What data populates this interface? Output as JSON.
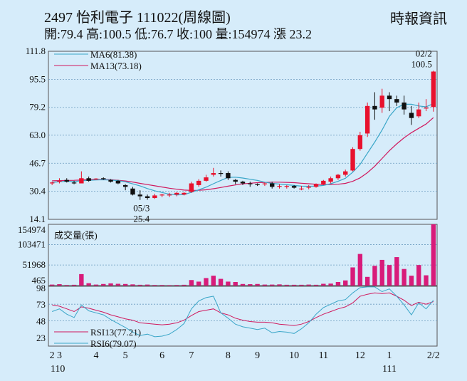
{
  "header": {
    "title": "2497  怡利電子 111022(周線圖)",
    "stats": "開:79.4 高:100.5 低:76.7 收:100 量:154974 漲 23.2",
    "source": "時報資訊"
  },
  "colors": {
    "up": "#e8112d",
    "down": "#111111",
    "volume": "#d81b7a",
    "ma6": "#3aa6c8",
    "ma13": "#d0195e",
    "rsi13": "#d0195e",
    "rsi6": "#3aa6c8",
    "grid": "#6e9cbf",
    "background": "#d6ecfa"
  },
  "chart_data": [
    {
      "type": "candlestick",
      "yticks": [
        111.8,
        95.5,
        79.2,
        63.0,
        46.7,
        30.4,
        14.1
      ],
      "ylim": [
        14.1,
        111.8
      ],
      "legend": [
        "MA6(81.38)",
        "MA13(73.18)"
      ],
      "annotations": [
        {
          "text": "02/2",
          "ref": "high"
        },
        {
          "text": "100.5",
          "ref": "high"
        },
        {
          "text": "05/3",
          "ref": "low"
        },
        {
          "text": "25.4",
          "ref": "low"
        }
      ],
      "candles": [
        [
          35.0,
          36.0,
          34.0,
          35.5
        ],
        [
          36.0,
          38.0,
          35.0,
          36.5
        ],
        [
          37.0,
          38.0,
          35.5,
          36.0
        ],
        [
          35.5,
          36.5,
          34.5,
          35.0
        ],
        [
          35.0,
          42.0,
          35.0,
          38.0
        ],
        [
          38.0,
          39.0,
          36.0,
          36.5
        ],
        [
          37.5,
          38.0,
          37.0,
          37.8
        ],
        [
          38.0,
          38.5,
          37.0,
          37.5
        ],
        [
          37.0,
          37.5,
          35.5,
          36.0
        ],
        [
          36.5,
          37.0,
          34.5,
          35.0
        ],
        [
          34.0,
          34.5,
          31.0,
          33.0
        ],
        [
          32.0,
          33.0,
          28.0,
          28.5
        ],
        [
          28.5,
          31.0,
          25.4,
          27.5
        ],
        [
          27.5,
          28.5,
          25.5,
          26.5
        ],
        [
          26.5,
          29.0,
          26.0,
          28.0
        ],
        [
          28.0,
          29.0,
          27.0,
          28.5
        ],
        [
          28.0,
          29.5,
          27.0,
          28.5
        ],
        [
          28.5,
          30.0,
          27.5,
          29.5
        ],
        [
          28.5,
          30.0,
          28.0,
          29.5
        ],
        [
          30.0,
          36.0,
          29.5,
          35.0
        ],
        [
          34.0,
          37.5,
          33.0,
          36.5
        ],
        [
          36.5,
          40.0,
          36.0,
          38.5
        ],
        [
          40.0,
          44.0,
          39.0,
          41.0
        ],
        [
          41.0,
          42.5,
          39.0,
          40.5
        ],
        [
          41.0,
          42.0,
          37.0,
          38.0
        ],
        [
          37.0,
          37.5,
          34.5,
          36.0
        ],
        [
          36.0,
          36.5,
          34.0,
          35.0
        ],
        [
          35.0,
          36.0,
          33.0,
          34.5
        ],
        [
          34.5,
          35.0,
          33.5,
          34.0
        ],
        [
          34.5,
          35.5,
          33.5,
          35.0
        ],
        [
          35.0,
          36.0,
          32.0,
          33.0
        ],
        [
          33.0,
          34.5,
          32.0,
          33.5
        ],
        [
          33.0,
          34.0,
          32.0,
          33.5
        ],
        [
          33.5,
          34.0,
          32.0,
          32.5
        ],
        [
          32.0,
          33.5,
          31.0,
          32.0
        ],
        [
          32.5,
          34.0,
          31.5,
          33.0
        ],
        [
          33.0,
          35.0,
          32.5,
          34.5
        ],
        [
          34.5,
          37.0,
          34.0,
          36.5
        ],
        [
          36.0,
          39.0,
          35.0,
          38.0
        ],
        [
          38.0,
          40.5,
          37.0,
          40.0
        ],
        [
          40.0,
          43.0,
          39.0,
          42.0
        ],
        [
          42.5,
          56.0,
          42.0,
          55.0
        ],
        [
          55.0,
          65.0,
          54.0,
          63.0
        ],
        [
          64.0,
          82.0,
          62.0,
          80.0
        ],
        [
          80.0,
          88.0,
          72.0,
          78.0
        ],
        [
          79.0,
          90.0,
          76.0,
          86.0
        ],
        [
          86.0,
          88.0,
          77.0,
          84.0
        ],
        [
          84.0,
          86.0,
          80.0,
          82.0
        ],
        [
          82.0,
          86.0,
          75.0,
          78.0
        ],
        [
          76.0,
          80.0,
          69.0,
          73.0
        ],
        [
          74.0,
          82.0,
          73.0,
          78.0
        ],
        [
          79.0,
          84.0,
          77.0,
          79.0
        ],
        [
          79.4,
          100.5,
          76.7,
          100.0
        ]
      ],
      "ma6": [
        35.5,
        36.0,
        36.2,
        36.1,
        36.5,
        36.8,
        37.0,
        37.1,
        36.9,
        36.6,
        35.9,
        34.7,
        33.5,
        32.0,
        30.7,
        29.7,
        28.7,
        28.3,
        28.5,
        29.8,
        31.3,
        32.8,
        34.8,
        36.7,
        38.5,
        38.6,
        38.1,
        37.4,
        36.7,
        35.7,
        35.0,
        34.6,
        34.2,
        33.8,
        33.4,
        33.3,
        33.4,
        33.8,
        34.8,
        36.2,
        38.0,
        41.5,
        46.0,
        52.5,
        59.0,
        66.0,
        74.0,
        79.0,
        81.0,
        81.0,
        80.0,
        79.5,
        81.4
      ],
      "ma13": [
        36.5,
        36.6,
        36.7,
        36.8,
        37.0,
        37.2,
        37.3,
        37.3,
        37.1,
        36.8,
        36.4,
        35.8,
        35.0,
        34.3,
        33.6,
        32.9,
        32.2,
        31.6,
        31.1,
        30.9,
        31.0,
        31.3,
        31.9,
        32.6,
        33.4,
        34.1,
        34.7,
        35.1,
        35.4,
        35.6,
        35.7,
        35.7,
        35.6,
        35.4,
        35.1,
        34.8,
        34.5,
        34.3,
        34.3,
        34.5,
        35.0,
        36.2,
        38.2,
        41.2,
        45.0,
        49.5,
        54.0,
        58.0,
        61.5,
        64.5,
        67.0,
        69.5,
        73.2
      ]
    },
    {
      "type": "bar",
      "title": "成交量(張)",
      "yticks": [
        154974,
        103471,
        51968,
        465
      ],
      "ylim": [
        0,
        154974
      ],
      "values": [
        2500,
        3500,
        1500,
        2000,
        29000,
        6000,
        2500,
        4000,
        5500,
        4500,
        4000,
        3000,
        2000,
        2500,
        1500,
        1500,
        1200,
        1500,
        2000,
        14000,
        10000,
        19000,
        25000,
        17000,
        10000,
        9000,
        4000,
        3500,
        4000,
        2500,
        2500,
        3000,
        2000,
        2000,
        2000,
        2500,
        2000,
        4500,
        5000,
        9000,
        13000,
        46000,
        80000,
        22000,
        50000,
        65000,
        52000,
        72000,
        42000,
        25000,
        52000,
        26000,
        154974
      ]
    },
    {
      "type": "line",
      "yticks": [
        98,
        73,
        48,
        23
      ],
      "ylim": [
        10,
        100
      ],
      "series": [
        {
          "name": "RSI13(77.21)",
          "values": [
            72,
            70,
            66,
            62,
            69,
            67,
            64,
            61,
            57,
            54,
            51,
            49,
            45,
            44,
            43,
            42,
            43,
            45,
            49,
            56,
            62,
            64,
            66,
            60,
            57,
            52,
            49,
            47,
            46,
            46,
            45,
            43,
            42,
            41,
            43,
            47,
            53,
            58,
            62,
            66,
            69,
            75,
            85,
            88,
            90,
            89,
            90,
            85,
            79,
            71,
            76,
            73,
            77
          ]
        },
        {
          "name": "RSI6(79.07)",
          "values": [
            62,
            66,
            58,
            53,
            72,
            63,
            60,
            57,
            50,
            44,
            38,
            31,
            26,
            28,
            24,
            25,
            28,
            35,
            44,
            66,
            78,
            83,
            85,
            60,
            52,
            43,
            39,
            37,
            35,
            37,
            30,
            32,
            31,
            29,
            36,
            45,
            58,
            68,
            73,
            78,
            80,
            90,
            98,
            99,
            99,
            92,
            96,
            85,
            72,
            57,
            75,
            66,
            79
          ]
        }
      ]
    }
  ],
  "xaxis": {
    "ticks": [
      "2",
      "3",
      "4",
      "5",
      "6",
      "7",
      "8",
      "9",
      "10",
      "11",
      "12",
      "1",
      "2/2"
    ],
    "sublabels": [
      "110",
      "111"
    ]
  }
}
